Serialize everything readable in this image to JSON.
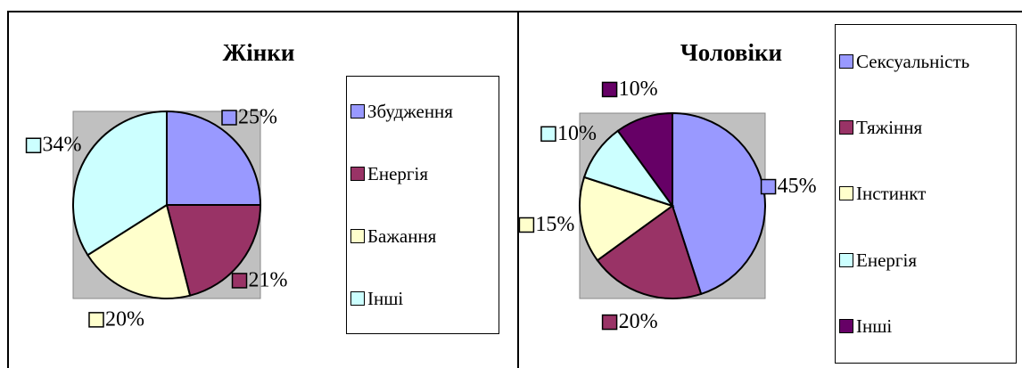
{
  "chart_data": [
    {
      "type": "pie",
      "title": "Жінки",
      "categories": [
        "Збудження",
        "Енергія",
        "Бажання",
        "Інші"
      ],
      "values": [
        25,
        21,
        20,
        34
      ],
      "value_labels": [
        "25%",
        "21%",
        "20%",
        "34%"
      ],
      "colors": [
        "#9999ff",
        "#993366",
        "#ffffcc",
        "#ccffff"
      ],
      "legend": "right"
    },
    {
      "type": "pie",
      "title": "Чоловіки",
      "categories": [
        "Сексуальність",
        "Тяжіння",
        "Інстинкт",
        "Енергія",
        "Інші"
      ],
      "values": [
        45,
        20,
        15,
        10,
        10
      ],
      "value_labels": [
        "45%",
        "20%",
        "15%",
        "10%",
        "10%"
      ],
      "colors": [
        "#9999ff",
        "#993366",
        "#ffffcc",
        "#ccffff",
        "#660066"
      ],
      "legend": "right"
    }
  ]
}
